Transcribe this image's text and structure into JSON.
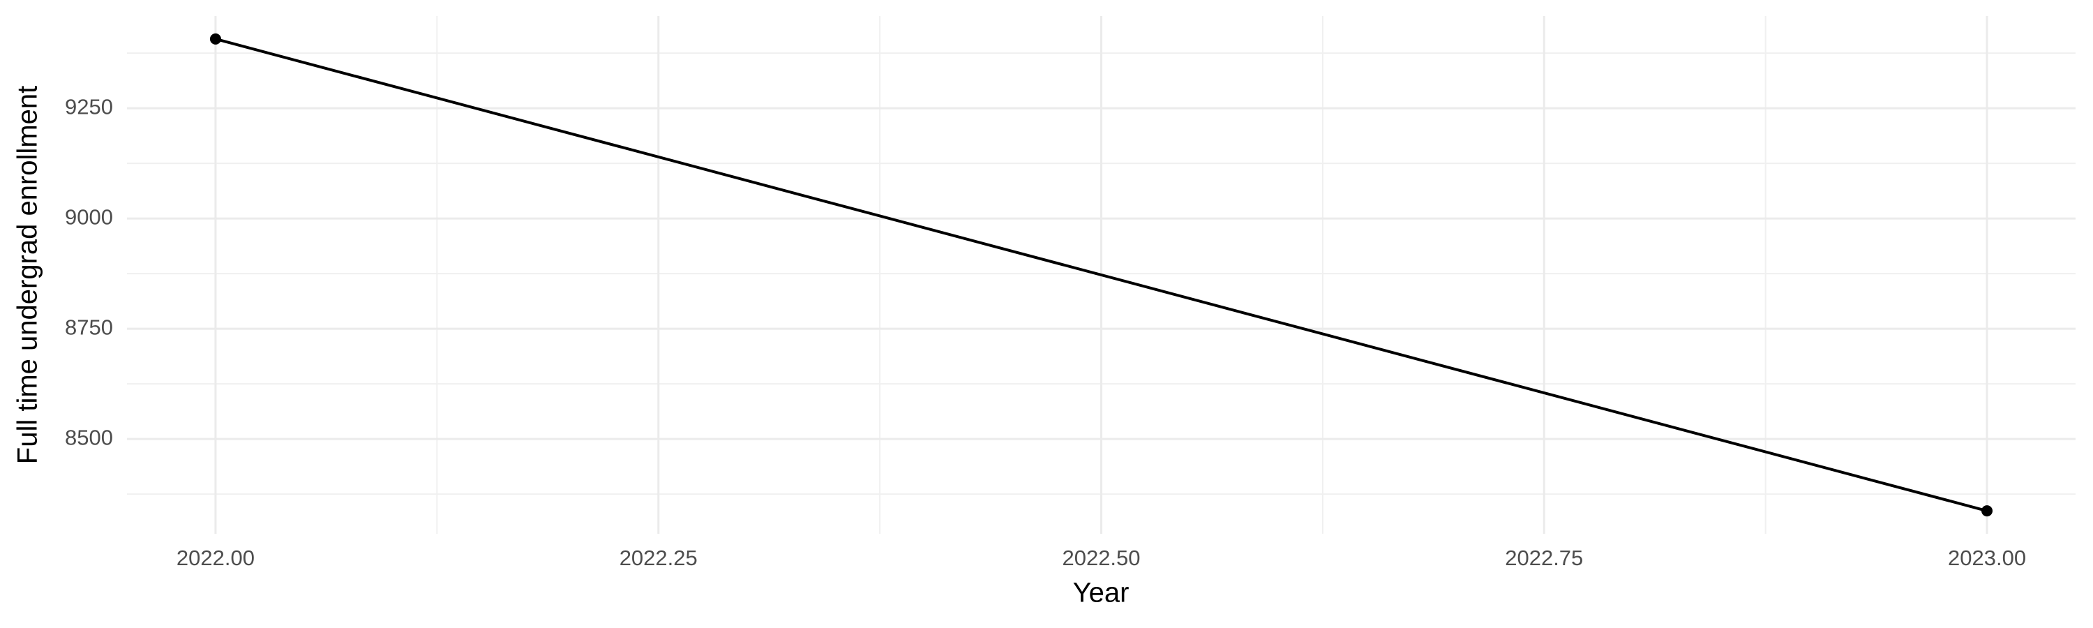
{
  "chart_data": {
    "type": "line",
    "x_label": "Year",
    "y_label": "Full time undergrad enrollment",
    "x": [
      2022,
      2023
    ],
    "values": [
      9407,
      8337
    ],
    "color": "#000000",
    "xlim": [
      2021.95,
      2023.05
    ],
    "ylim": [
      8285,
      9459
    ],
    "xticks": [
      {
        "value": 2022,
        "label": "2022.00"
      },
      {
        "value": 2022.25,
        "label": "2022.25"
      },
      {
        "value": 2022.5,
        "label": "2022.50"
      },
      {
        "value": 2022.75,
        "label": "2022.75"
      },
      {
        "value": 2023,
        "label": "2023.00"
      }
    ],
    "yticks": [
      8500,
      8750,
      9000,
      9250
    ],
    "grid": true
  }
}
